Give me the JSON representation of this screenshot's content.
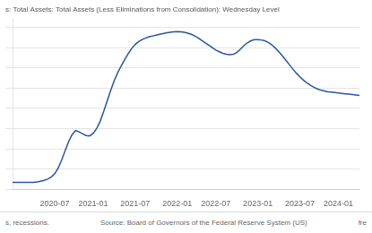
{
  "chart_data": {
    "type": "line",
    "title": "s: Total Assets: Total Assets (Less Eliminations from Consolidation): Wednesday Level",
    "categories": [
      null,
      null,
      null,
      null,
      null,
      null,
      null,
      null,
      null,
      null,
      null,
      null,
      "2020-07",
      null,
      null,
      null,
      null,
      null,
      null,
      null,
      null,
      null,
      null,
      "2021-01",
      null,
      null,
      null,
      null,
      null,
      null,
      null,
      null,
      null,
      null,
      null,
      "2021-07",
      null,
      null,
      null,
      null,
      null,
      null,
      null,
      null,
      null,
      null,
      null,
      "2022-01",
      null,
      null,
      null,
      null,
      null,
      null,
      null,
      null,
      null,
      null,
      "2022-07",
      null,
      null,
      null,
      null,
      null,
      null,
      null,
      null,
      null,
      null,
      null,
      "2023-01",
      null,
      null,
      null,
      null,
      null,
      null,
      null,
      null,
      null,
      null,
      null,
      "2023-07",
      null,
      null,
      null,
      null,
      null,
      null,
      null,
      null,
      null,
      null,
      "2024-01",
      null,
      null,
      null,
      null,
      null,
      null
    ],
    "values": [
      4.17,
      4.17,
      4.17,
      4.17,
      4.17,
      4.17,
      4.17,
      4.18,
      4.2,
      4.22,
      4.25,
      4.3,
      4.38,
      4.52,
      4.72,
      4.95,
      5.18,
      5.35,
      5.45,
      5.42,
      5.37,
      5.33,
      5.32,
      5.38,
      5.5,
      5.68,
      5.92,
      6.18,
      6.44,
      6.68,
      6.88,
      7.05,
      7.2,
      7.35,
      7.48,
      7.58,
      7.65,
      7.7,
      7.74,
      7.77,
      7.79,
      7.81,
      7.83,
      7.85,
      7.87,
      7.88,
      7.89,
      7.9,
      7.89,
      7.88,
      7.86,
      7.83,
      7.79,
      7.74,
      7.68,
      7.62,
      7.56,
      7.5,
      7.44,
      7.4,
      7.36,
      7.34,
      7.33,
      7.34,
      7.38,
      7.46,
      7.55,
      7.62,
      7.67,
      7.7,
      7.7,
      7.69,
      7.67,
      7.63,
      7.57,
      7.49,
      7.4,
      7.3,
      7.19,
      7.08,
      6.97,
      6.87,
      6.78,
      6.7,
      6.63,
      6.57,
      6.52,
      6.48,
      6.45,
      6.43,
      6.41,
      6.4,
      6.39,
      6.38,
      6.37,
      6.36,
      6.35,
      6.34,
      6.33,
      6.32
    ],
    "color": "#2655a0",
    "ylim": [
      4.0,
      8.2
    ],
    "yticks": [
      4.0,
      4.5,
      5.0,
      5.5,
      6.0,
      6.5,
      7.0,
      7.5,
      8.0
    ],
    "grid": "y",
    "tick_labels": "x",
    "annotations": [
      "s, recessions.",
      "Source: Board of Governors of the Federal Reserve System (US)",
      "fre"
    ]
  }
}
